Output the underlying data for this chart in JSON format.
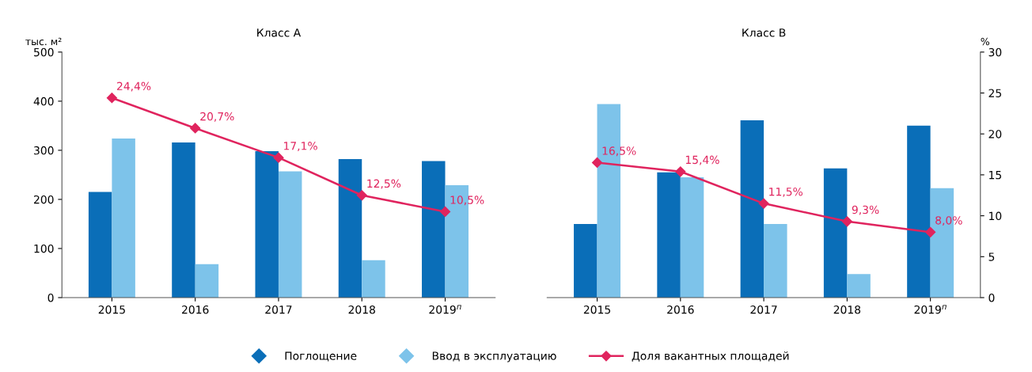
{
  "chart_data": [
    {
      "type": "bar",
      "title": "Класс A",
      "ylabel": "тыс. м²",
      "categories": [
        "2015",
        "2016",
        "2017",
        "2018",
        "2019$^{п}$"
      ],
      "ylim": [
        0,
        500
      ],
      "yticks": [
        0,
        100,
        200,
        300,
        400,
        500
      ],
      "y2lim": [
        0,
        30
      ],
      "tick_labels": [
        "x",
        "y"
      ],
      "legend": "bottom",
      "grid": false,
      "series": [
        {
          "name": "Поглощение",
          "color": "#0a6eb8",
          "values": [
            215,
            316,
            298,
            282,
            278
          ]
        },
        {
          "name": "Ввод в эксплуатацию",
          "color": "#7dc3ea",
          "values": [
            324,
            68,
            257,
            76,
            229
          ]
        },
        {
          "name": "Доля вакантных площадей",
          "type": "line",
          "axis": "y2",
          "color": "#e0245e",
          "marker": "diamond",
          "values": [
            24.4,
            20.7,
            17.1,
            12.5,
            10.5
          ],
          "value_labels": [
            "24,4%",
            "20,7%",
            "17,1%",
            "12,5%",
            "10,5%"
          ]
        }
      ]
    },
    {
      "type": "bar",
      "title": "Класс B",
      "y2label": "%",
      "categories": [
        "2015",
        "2016",
        "2017",
        "2018",
        "2019$^{п}$"
      ],
      "ylim": [
        0,
        500
      ],
      "y2lim": [
        0,
        30
      ],
      "y2ticks": [
        0,
        5,
        10,
        15,
        20,
        25,
        30
      ],
      "tick_labels": [
        "x",
        "y2"
      ],
      "grid": false,
      "series": [
        {
          "color": "#0a6eb8",
          "values": [
            150,
            255,
            361,
            263,
            350
          ]
        },
        {
          "color": "#7dc3ea",
          "values": [
            394,
            245,
            150,
            48,
            223
          ]
        },
        {
          "type": "line",
          "axis": "y2",
          "color": "#e0245e",
          "marker": "diamond",
          "values": [
            16.5,
            15.4,
            11.5,
            9.3,
            8.0
          ],
          "value_labels": [
            "16,5%",
            "15,4%",
            "11,5%",
            "9,3%",
            "8,0%"
          ]
        }
      ]
    }
  ]
}
